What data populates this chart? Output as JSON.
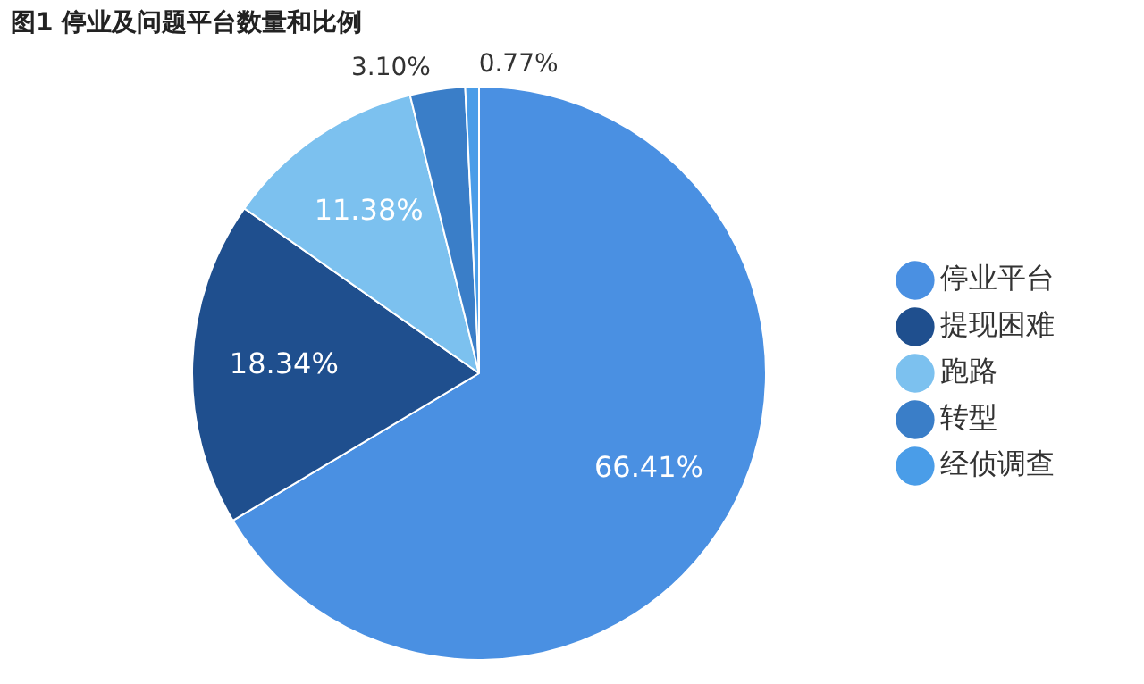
{
  "chart_data": {
    "type": "pie",
    "title": "图1 停业及问题平台数量和比例",
    "categories": [
      "停业平台",
      "提现困难",
      "跑路",
      "转型",
      "经侦调查"
    ],
    "values": [
      66.41,
      18.34,
      11.38,
      3.1,
      0.77
    ],
    "value_labels": [
      "66.41%",
      "18.34%",
      "11.38%",
      "3.10%",
      "0.77%"
    ],
    "colors": [
      "#4a90e2",
      "#1f4f8e",
      "#7cc1ef",
      "#3a7ec8",
      "#4a9de8"
    ],
    "legend": "right"
  }
}
